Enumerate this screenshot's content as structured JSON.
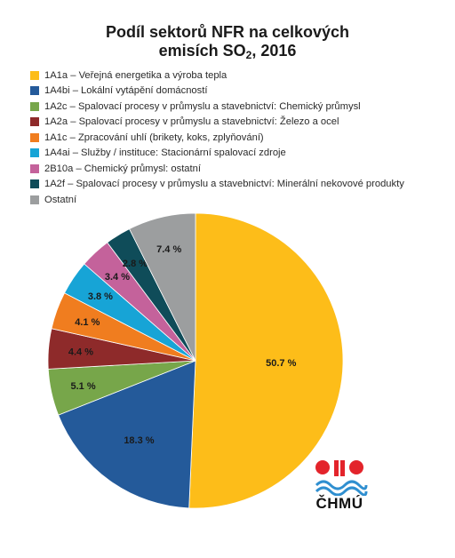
{
  "title_main": "Podíl sektorů NFR na celkových",
  "title_sub_prefix": "emisích SO",
  "title_sub_index": "2",
  "title_sub_suffix": ", 2016",
  "logo_text": "ČHMÚ",
  "chart_data": {
    "type": "pie",
    "title": "Podíl sektorů NFR na celkových emisích SO2, 2016",
    "legend_position": "top-left",
    "start_angle_deg": 0,
    "direction": "clockwise",
    "slices": [
      {
        "label": "1A1a – Veřejná energetika a výroba tepla",
        "value": 50.7,
        "value_label": "50.7 %",
        "color": "#FDBD19"
      },
      {
        "label": "1A4bi – Lokální vytápění domácností",
        "value": 18.3,
        "value_label": "18.3 %",
        "color": "#245A9A"
      },
      {
        "label": "1A2c – Spalovací procesy v průmyslu a stavebnictví: Chemický průmysl",
        "value": 5.1,
        "value_label": "5.1 %",
        "color": "#77A64A"
      },
      {
        "label": "1A2a – Spalovací procesy v průmyslu a stavebnictví: Železo a ocel",
        "value": 4.4,
        "value_label": "4.4 %",
        "color": "#8E2A2A"
      },
      {
        "label": "1A1c – Zpracování uhlí (brikety, koks, zplyňování)",
        "value": 4.1,
        "value_label": "4.1 %",
        "color": "#F07D1F"
      },
      {
        "label": "1A4ai – Služby / instituce: Stacionární spalovací zdroje",
        "value": 3.8,
        "value_label": "3.8 %",
        "color": "#17A4D6"
      },
      {
        "label": "2B10a – Chemický průmysl: ostatní",
        "value": 3.4,
        "value_label": "3.4 %",
        "color": "#C4629B"
      },
      {
        "label": "1A2f – Spalovací procesy v průmyslu a stavebnictví: Minerální nekovové produkty",
        "value": 2.8,
        "value_label": "2.8 %",
        "color": "#0F4C59"
      },
      {
        "label": "Ostatní",
        "value": 7.4,
        "value_label": "7.4 %",
        "color": "#9C9E9F"
      }
    ]
  }
}
